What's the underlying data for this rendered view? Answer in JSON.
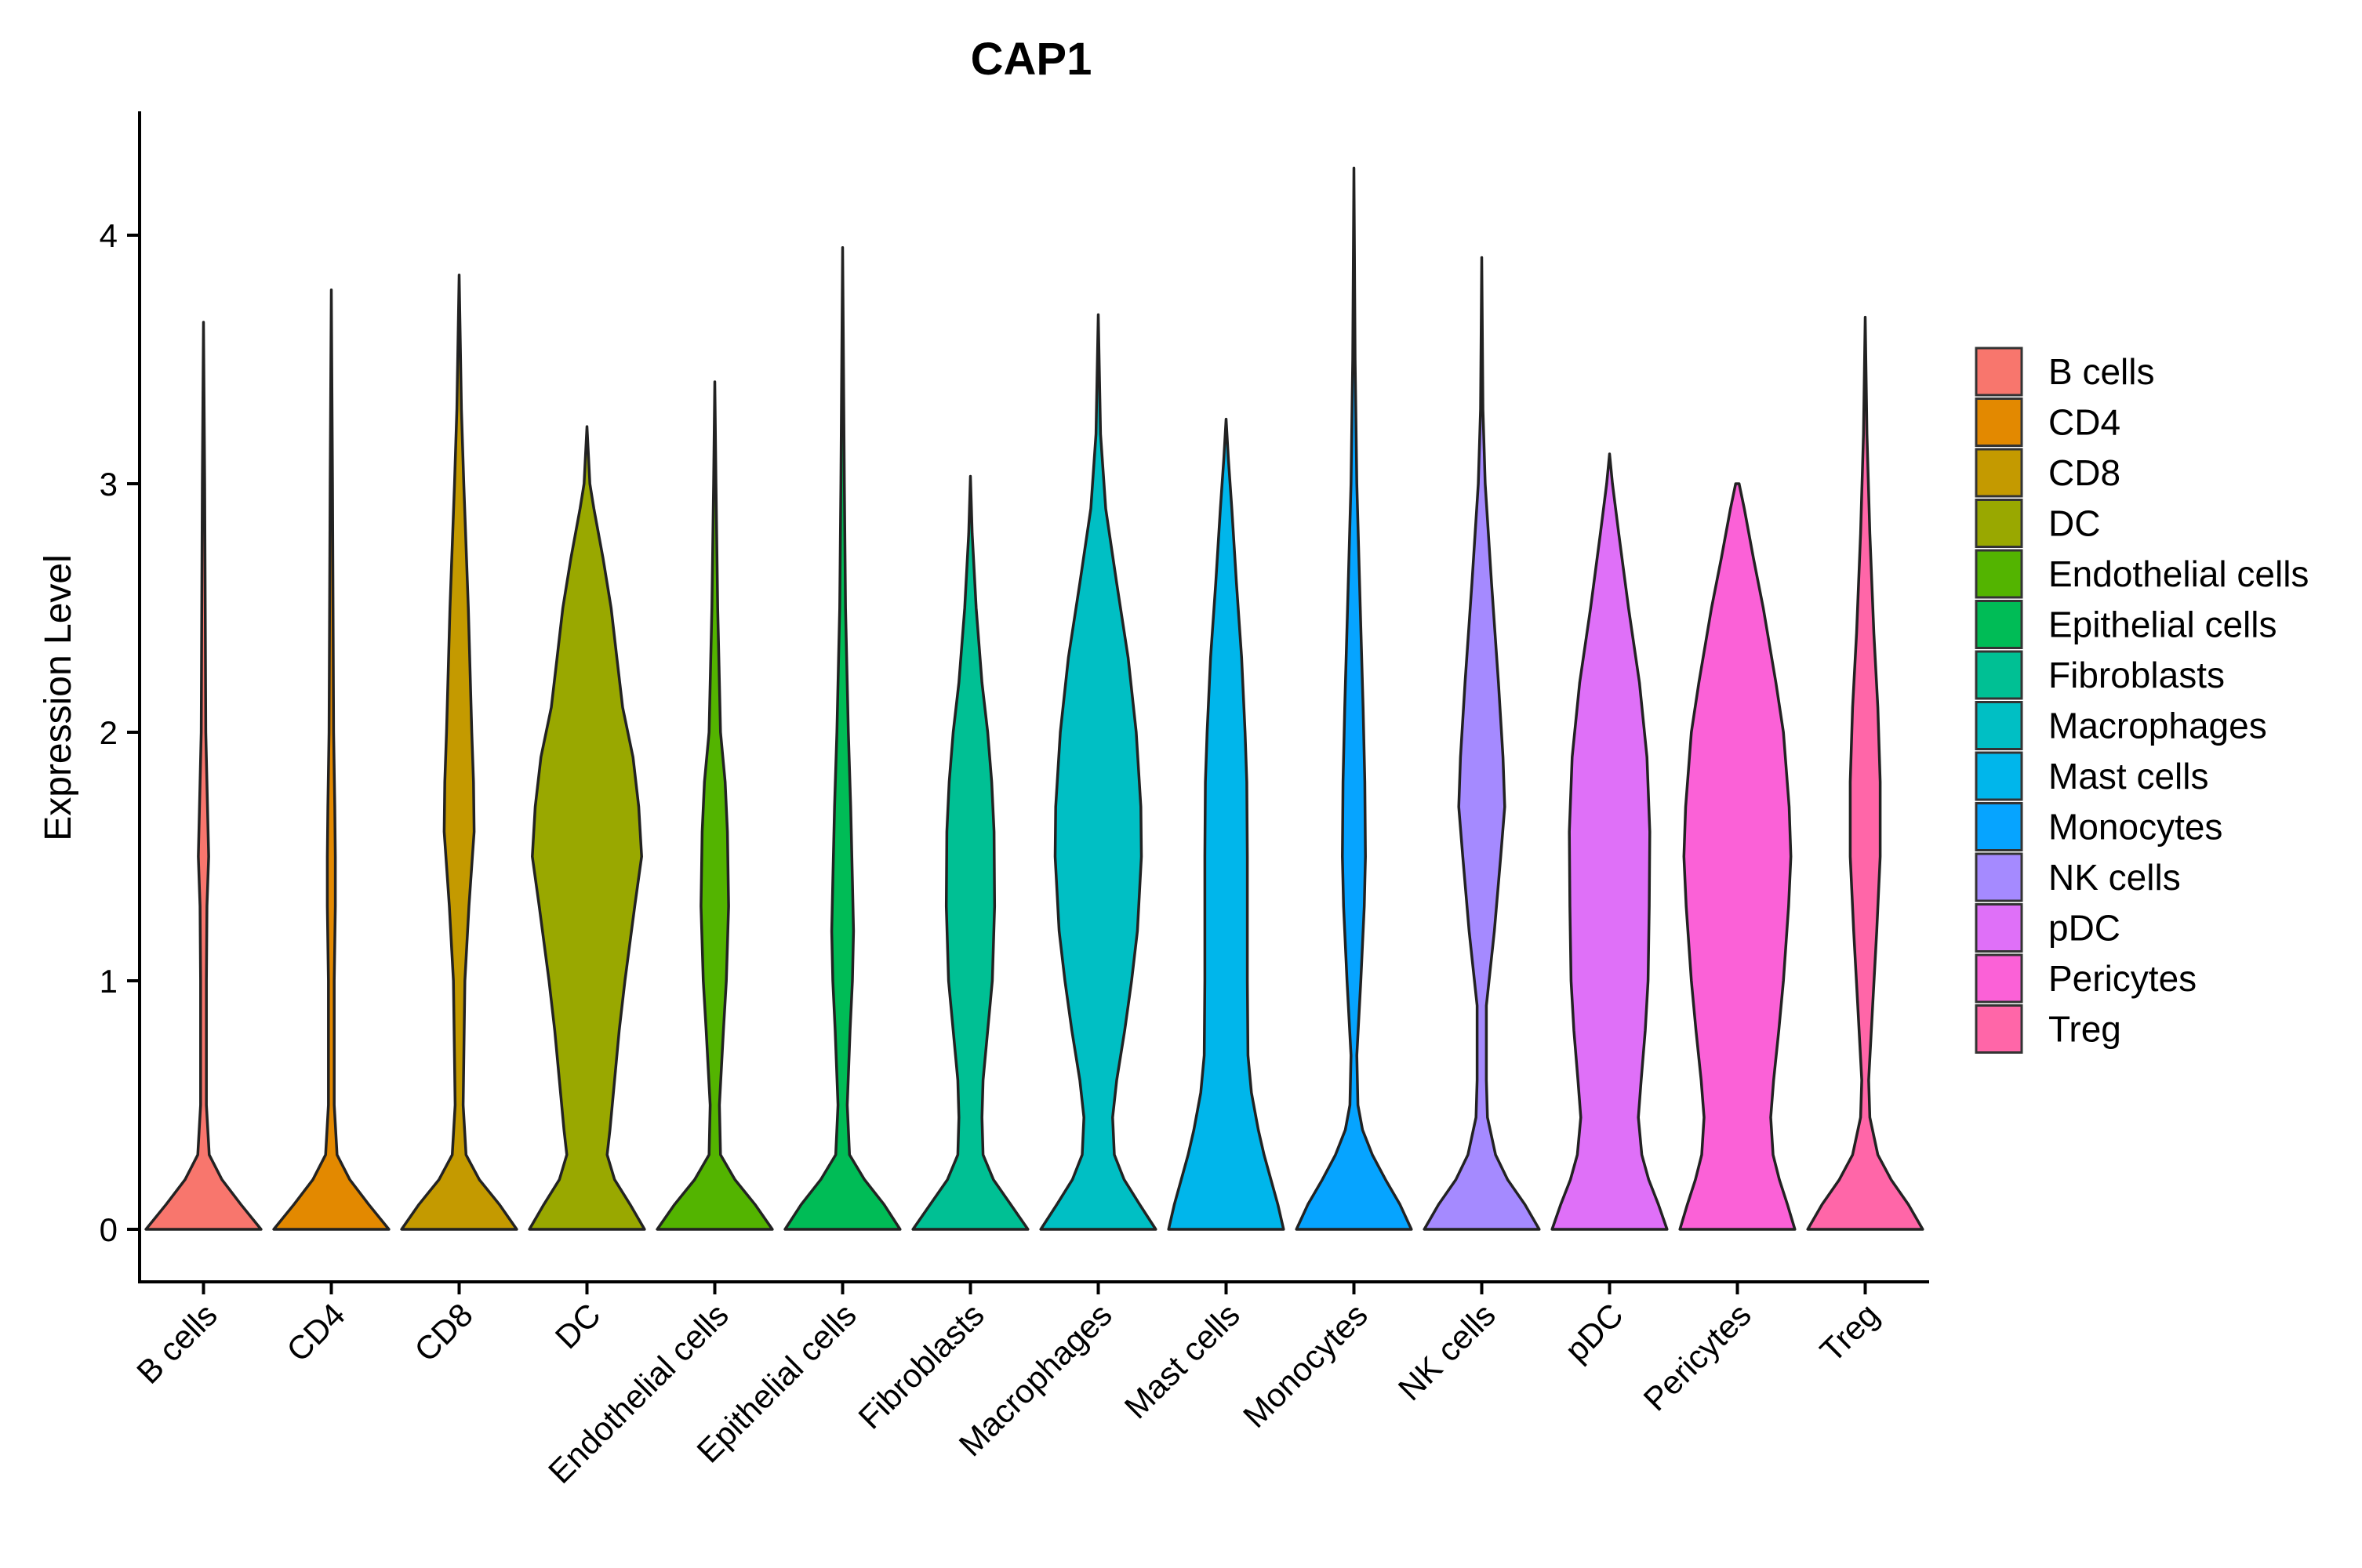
{
  "chart_data": {
    "type": "violin",
    "title": "CAP1",
    "xlabel": "",
    "ylabel": "Expression Level",
    "ylim": [
      -0.2,
      4.5
    ],
    "yticks": [
      0,
      1,
      2,
      3,
      4
    ],
    "grid": false,
    "legend_position": "right",
    "categories": [
      "B cells",
      "CD4",
      "CD8",
      "DC",
      "Endothelial cells",
      "Epithelial cells",
      "Fibroblasts",
      "Macrophages",
      "Mast cells",
      "Monocytes",
      "NK cells",
      "pDC",
      "Pericytes",
      "Treg"
    ],
    "colors": [
      "#F8766D",
      "#E38900",
      "#C49A00",
      "#99A800",
      "#53B400",
      "#00BC56",
      "#00C094",
      "#00BFC4",
      "#00B6EB",
      "#06A4FF",
      "#A58AFF",
      "#DF70F8",
      "#FB61D7",
      "#FF66A8"
    ],
    "series": [
      {
        "name": "B cells",
        "max": 3.65,
        "profile": [
          [
            0,
            1
          ],
          [
            0.1,
            0.65
          ],
          [
            0.2,
            0.32
          ],
          [
            0.3,
            0.1
          ],
          [
            0.5,
            0.05
          ],
          [
            1.0,
            0.05
          ],
          [
            1.3,
            0.06
          ],
          [
            1.5,
            0.09
          ],
          [
            1.7,
            0.07
          ],
          [
            2.0,
            0.04
          ],
          [
            2.5,
            0.03
          ],
          [
            3.0,
            0.02
          ],
          [
            3.65,
            0.0
          ]
        ]
      },
      {
        "name": "CD4",
        "max": 3.78,
        "profile": [
          [
            0,
            1
          ],
          [
            0.1,
            0.65
          ],
          [
            0.2,
            0.32
          ],
          [
            0.3,
            0.1
          ],
          [
            0.5,
            0.05
          ],
          [
            1.0,
            0.05
          ],
          [
            1.3,
            0.07
          ],
          [
            1.5,
            0.07
          ],
          [
            1.7,
            0.06
          ],
          [
            2.0,
            0.04
          ],
          [
            2.5,
            0.03
          ],
          [
            3.0,
            0.02
          ],
          [
            3.78,
            0.0
          ]
        ]
      },
      {
        "name": "CD8",
        "max": 3.84,
        "profile": [
          [
            0,
            1
          ],
          [
            0.1,
            0.7
          ],
          [
            0.2,
            0.35
          ],
          [
            0.3,
            0.12
          ],
          [
            0.5,
            0.07
          ],
          [
            1.0,
            0.1
          ],
          [
            1.3,
            0.17
          ],
          [
            1.6,
            0.26
          ],
          [
            1.8,
            0.25
          ],
          [
            2.0,
            0.22
          ],
          [
            2.5,
            0.16
          ],
          [
            3.0,
            0.08
          ],
          [
            3.3,
            0.04
          ],
          [
            3.84,
            0.0
          ]
        ]
      },
      {
        "name": "DC",
        "max": 3.23,
        "profile": [
          [
            0,
            1
          ],
          [
            0.1,
            0.75
          ],
          [
            0.2,
            0.48
          ],
          [
            0.3,
            0.35
          ],
          [
            0.4,
            0.4
          ],
          [
            0.6,
            0.48
          ],
          [
            0.8,
            0.56
          ],
          [
            1.0,
            0.66
          ],
          [
            1.3,
            0.83
          ],
          [
            1.5,
            0.95
          ],
          [
            1.7,
            0.9
          ],
          [
            1.9,
            0.8
          ],
          [
            2.1,
            0.62
          ],
          [
            2.3,
            0.52
          ],
          [
            2.5,
            0.42
          ],
          [
            2.7,
            0.28
          ],
          [
            2.9,
            0.12
          ],
          [
            3.0,
            0.05
          ],
          [
            3.23,
            0.0
          ]
        ]
      },
      {
        "name": "Endothelial cells",
        "max": 3.41,
        "profile": [
          [
            0,
            1
          ],
          [
            0.1,
            0.7
          ],
          [
            0.2,
            0.35
          ],
          [
            0.3,
            0.1
          ],
          [
            0.5,
            0.08
          ],
          [
            0.8,
            0.15
          ],
          [
            1.0,
            0.2
          ],
          [
            1.3,
            0.24
          ],
          [
            1.6,
            0.22
          ],
          [
            1.8,
            0.18
          ],
          [
            2.0,
            0.1
          ],
          [
            2.5,
            0.05
          ],
          [
            3.0,
            0.02
          ],
          [
            3.41,
            0.0
          ]
        ]
      },
      {
        "name": "Epithelial cells",
        "max": 3.95,
        "profile": [
          [
            0,
            1
          ],
          [
            0.1,
            0.72
          ],
          [
            0.2,
            0.38
          ],
          [
            0.3,
            0.12
          ],
          [
            0.5,
            0.08
          ],
          [
            0.8,
            0.13
          ],
          [
            1.0,
            0.17
          ],
          [
            1.2,
            0.19
          ],
          [
            1.4,
            0.17
          ],
          [
            1.7,
            0.14
          ],
          [
            2.0,
            0.1
          ],
          [
            2.5,
            0.05
          ],
          [
            3.0,
            0.03
          ],
          [
            3.95,
            0.0
          ]
        ]
      },
      {
        "name": "Fibroblasts",
        "max": 3.03,
        "profile": [
          [
            0,
            1
          ],
          [
            0.1,
            0.7
          ],
          [
            0.2,
            0.4
          ],
          [
            0.3,
            0.22
          ],
          [
            0.45,
            0.2
          ],
          [
            0.6,
            0.22
          ],
          [
            0.8,
            0.3
          ],
          [
            1.0,
            0.38
          ],
          [
            1.3,
            0.42
          ],
          [
            1.6,
            0.41
          ],
          [
            1.8,
            0.37
          ],
          [
            2.0,
            0.3
          ],
          [
            2.2,
            0.2
          ],
          [
            2.5,
            0.1
          ],
          [
            2.8,
            0.03
          ],
          [
            3.03,
            0.0
          ]
        ]
      },
      {
        "name": "Macrophages",
        "max": 3.68,
        "profile": [
          [
            0,
            1
          ],
          [
            0.1,
            0.72
          ],
          [
            0.2,
            0.45
          ],
          [
            0.3,
            0.28
          ],
          [
            0.45,
            0.25
          ],
          [
            0.6,
            0.32
          ],
          [
            0.8,
            0.46
          ],
          [
            1.0,
            0.58
          ],
          [
            1.2,
            0.68
          ],
          [
            1.5,
            0.75
          ],
          [
            1.7,
            0.74
          ],
          [
            2.0,
            0.66
          ],
          [
            2.3,
            0.52
          ],
          [
            2.6,
            0.32
          ],
          [
            2.9,
            0.13
          ],
          [
            3.2,
            0.04
          ],
          [
            3.68,
            0.0
          ]
        ]
      },
      {
        "name": "Mast cells",
        "max": 3.26,
        "profile": [
          [
            0,
            1
          ],
          [
            0.1,
            0.9
          ],
          [
            0.2,
            0.78
          ],
          [
            0.3,
            0.66
          ],
          [
            0.4,
            0.56
          ],
          [
            0.55,
            0.44
          ],
          [
            0.7,
            0.38
          ],
          [
            1.0,
            0.37
          ],
          [
            1.5,
            0.37
          ],
          [
            1.8,
            0.36
          ],
          [
            2.0,
            0.33
          ],
          [
            2.3,
            0.27
          ],
          [
            2.6,
            0.18
          ],
          [
            2.9,
            0.1
          ],
          [
            3.1,
            0.04
          ],
          [
            3.26,
            0.0
          ]
        ]
      },
      {
        "name": "Monocytes",
        "max": 4.27,
        "profile": [
          [
            0,
            1
          ],
          [
            0.1,
            0.8
          ],
          [
            0.2,
            0.55
          ],
          [
            0.3,
            0.32
          ],
          [
            0.4,
            0.15
          ],
          [
            0.5,
            0.07
          ],
          [
            0.7,
            0.05
          ],
          [
            1.0,
            0.12
          ],
          [
            1.3,
            0.18
          ],
          [
            1.5,
            0.2
          ],
          [
            1.8,
            0.19
          ],
          [
            2.1,
            0.16
          ],
          [
            2.5,
            0.11
          ],
          [
            3.0,
            0.05
          ],
          [
            3.5,
            0.02
          ],
          [
            4.27,
            0.0
          ]
        ]
      },
      {
        "name": "NK cells",
        "max": 3.91,
        "profile": [
          [
            0,
            1
          ],
          [
            0.1,
            0.75
          ],
          [
            0.2,
            0.45
          ],
          [
            0.3,
            0.24
          ],
          [
            0.45,
            0.1
          ],
          [
            0.6,
            0.08
          ],
          [
            0.9,
            0.08
          ],
          [
            1.2,
            0.22
          ],
          [
            1.5,
            0.33
          ],
          [
            1.7,
            0.4
          ],
          [
            1.9,
            0.37
          ],
          [
            2.2,
            0.29
          ],
          [
            2.6,
            0.17
          ],
          [
            3.0,
            0.06
          ],
          [
            3.3,
            0.02
          ],
          [
            3.91,
            0.0
          ]
        ]
      },
      {
        "name": "pDC",
        "max": 3.12,
        "profile": [
          [
            0,
            1
          ],
          [
            0.1,
            0.85
          ],
          [
            0.2,
            0.68
          ],
          [
            0.3,
            0.56
          ],
          [
            0.45,
            0.5
          ],
          [
            0.6,
            0.55
          ],
          [
            0.8,
            0.62
          ],
          [
            1.0,
            0.67
          ],
          [
            1.3,
            0.69
          ],
          [
            1.6,
            0.7
          ],
          [
            1.9,
            0.65
          ],
          [
            2.2,
            0.52
          ],
          [
            2.5,
            0.33
          ],
          [
            2.8,
            0.16
          ],
          [
            3.0,
            0.05
          ],
          [
            3.12,
            0.0
          ]
        ]
      },
      {
        "name": "Pericytes",
        "max": 3.0,
        "profile": [
          [
            0,
            1
          ],
          [
            0.1,
            0.87
          ],
          [
            0.2,
            0.73
          ],
          [
            0.3,
            0.62
          ],
          [
            0.45,
            0.58
          ],
          [
            0.6,
            0.63
          ],
          [
            0.8,
            0.72
          ],
          [
            1.0,
            0.8
          ],
          [
            1.3,
            0.89
          ],
          [
            1.5,
            0.93
          ],
          [
            1.7,
            0.9
          ],
          [
            2.0,
            0.8
          ],
          [
            2.2,
            0.67
          ],
          [
            2.5,
            0.45
          ],
          [
            2.7,
            0.28
          ],
          [
            2.9,
            0.12
          ],
          [
            3.0,
            0.03
          ]
        ]
      },
      {
        "name": "Treg",
        "max": 3.67,
        "profile": [
          [
            0,
            1
          ],
          [
            0.1,
            0.75
          ],
          [
            0.2,
            0.45
          ],
          [
            0.3,
            0.22
          ],
          [
            0.45,
            0.08
          ],
          [
            0.6,
            0.06
          ],
          [
            0.9,
            0.13
          ],
          [
            1.2,
            0.2
          ],
          [
            1.5,
            0.26
          ],
          [
            1.8,
            0.26
          ],
          [
            2.1,
            0.22
          ],
          [
            2.4,
            0.15
          ],
          [
            2.8,
            0.08
          ],
          [
            3.2,
            0.03
          ],
          [
            3.67,
            0.0
          ]
        ]
      }
    ]
  }
}
